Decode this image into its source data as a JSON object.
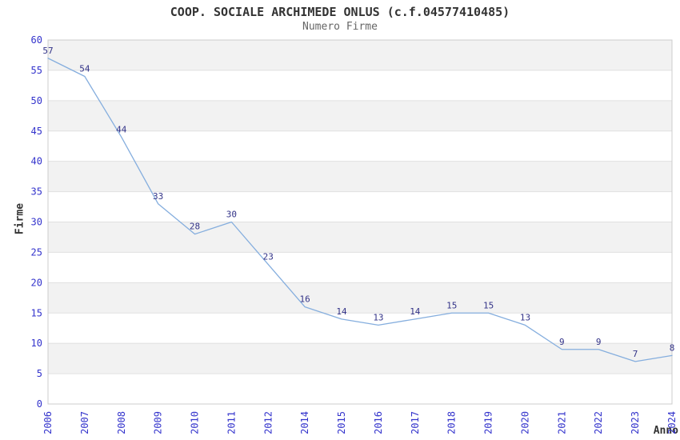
{
  "chart_data": {
    "type": "line",
    "title": "COOP. SOCIALE ARCHIMEDE ONLUS (c.f.04577410485)",
    "subtitle": "Numero Firme",
    "xlabel": "Anno",
    "ylabel": "Firme",
    "categories": [
      "2006",
      "2007",
      "2008",
      "2009",
      "2010",
      "2011",
      "2012",
      "2014",
      "2015",
      "2016",
      "2017",
      "2018",
      "2019",
      "2020",
      "2021",
      "2022",
      "2023",
      "2024"
    ],
    "series": [
      {
        "name": "Numero Firme",
        "values": [
          57,
          54,
          44,
          33,
          28,
          30,
          23,
          16,
          14,
          13,
          14,
          15,
          15,
          13,
          9,
          9,
          7,
          8
        ]
      }
    ],
    "ylim": [
      0,
      60
    ],
    "ytick_step": 5,
    "yticks": [
      0,
      5,
      10,
      15,
      20,
      25,
      30,
      35,
      40,
      45,
      50,
      55,
      60
    ],
    "grid": "alternating-horizontal-bands",
    "legend": "none",
    "data_labels_visible": true,
    "colors": {
      "line": "#85aede",
      "data_label": "#333388",
      "tick_label": "#3333cc",
      "band_fill": "#f2f2f2",
      "gridline": "#e0e0e0",
      "plot_border": "#cccccc",
      "title": "#333333",
      "subtitle": "#666666",
      "axis_label": "#333333",
      "background": "#ffffff"
    }
  }
}
